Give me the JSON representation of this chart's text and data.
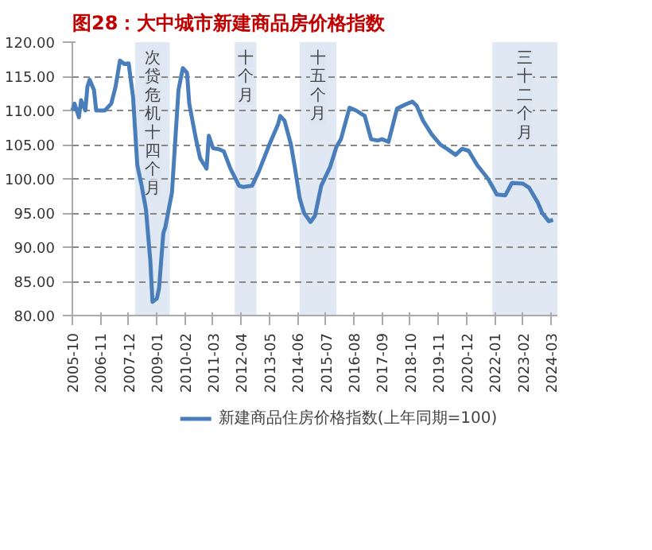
{
  "chart_data": {
    "type": "line",
    "title": "图28：大中城市新建商品房价格指数",
    "x": [
      "2005-10",
      "2005-11",
      "2006-01",
      "2006-02",
      "2006-04",
      "2006-05",
      "2006-06",
      "2006-08",
      "2006-09",
      "2007-01",
      "2007-04",
      "2007-06",
      "2007-08",
      "2007-10",
      "2007-12",
      "2008-02",
      "2008-04",
      "2008-06",
      "2008-08",
      "2008-10",
      "2008-11",
      "2009-01",
      "2009-02",
      "2009-04",
      "2009-05",
      "2009-08",
      "2009-11",
      "2010-01",
      "2010-03",
      "2010-04",
      "2010-07",
      "2010-09",
      "2010-12",
      "2011-01",
      "2011-03",
      "2011-06",
      "2011-08",
      "2011-11",
      "2012-03",
      "2012-05",
      "2012-09",
      "2012-12",
      "2013-05",
      "2013-09",
      "2013-10",
      "2013-12",
      "2014-03",
      "2014-05",
      "2014-07",
      "2014-09",
      "2014-12",
      "2015-02",
      "2015-05",
      "2015-09",
      "2015-12",
      "2016-02",
      "2016-06",
      "2016-09",
      "2017-01",
      "2017-04",
      "2017-07",
      "2017-09",
      "2017-12",
      "2018-04",
      "2018-08",
      "2018-11",
      "2019-01",
      "2019-04",
      "2019-08",
      "2019-12",
      "2020-03",
      "2020-07",
      "2020-10",
      "2021-01",
      "2021-05",
      "2021-10",
      "2022-02",
      "2022-06",
      "2022-09",
      "2023-02",
      "2023-05",
      "2023-09",
      "2023-11",
      "2024-02",
      "2024-04"
    ],
    "series": [
      {
        "name": "新建商品住房价格指数(上年同期=100)",
        "color": "#4a7ebb",
        "values": [
          110,
          111,
          109,
          111.5,
          110,
          113.5,
          114.5,
          113,
          110,
          110,
          111,
          113.5,
          117.3,
          116.8,
          116.9,
          112,
          102,
          99,
          95.5,
          88,
          82,
          82.5,
          84,
          92,
          93,
          98,
          113,
          116.2,
          115.5,
          111,
          106,
          103,
          101.5,
          106.3,
          104.5,
          104.3,
          104,
          101.5,
          99,
          98.8,
          99,
          101,
          105,
          108,
          109.2,
          108.5,
          105,
          101.3,
          97.2,
          95,
          93.7,
          94.6,
          99,
          101.7,
          104.7,
          105.8,
          110.4,
          110,
          109.2,
          105.8,
          105.6,
          105.8,
          105.4,
          110.3,
          110.9,
          111.3,
          110.7,
          108.5,
          106.5,
          105,
          104.4,
          103.5,
          104.4,
          104.1,
          102,
          100,
          97.7,
          97.6,
          99.4,
          99.3,
          98.7,
          96.5,
          95,
          93.8,
          94
        ]
      }
    ],
    "xlim": [
      "2005-10",
      "2024-06"
    ],
    "xticks": [
      "2005-10",
      "2006-11",
      "2007-12",
      "2009-01",
      "2010-02",
      "2011-03",
      "2012-04",
      "2013-05",
      "2014-06",
      "2015-07",
      "2016-08",
      "2017-09",
      "2018-10",
      "2019-11",
      "2020-12",
      "2022-01",
      "2023-02",
      "2024-03"
    ],
    "ylim": [
      80,
      120
    ],
    "yticks": [
      {
        "value": 80,
        "label": "80.00"
      },
      {
        "value": 85,
        "label": "85.00"
      },
      {
        "value": 90,
        "label": "90.00"
      },
      {
        "value": 95,
        "label": "95.00"
      },
      {
        "value": 100,
        "label": "100.00"
      },
      {
        "value": 105,
        "label": "105.00"
      },
      {
        "value": 110,
        "label": "110.00"
      },
      {
        "value": 115,
        "label": "115.00"
      },
      {
        "value": 120,
        "label": "120.00"
      }
    ],
    "bands": [
      {
        "axis": "x",
        "from": "2008-03",
        "to": "2009-07",
        "label": "次贷危机十四个月",
        "color": "#dce6f2"
      },
      {
        "axis": "x",
        "from": "2012-01",
        "to": "2012-11",
        "label": "十个月",
        "color": "#dce6f2"
      },
      {
        "axis": "x",
        "from": "2014-07",
        "to": "2015-12",
        "label": "十五个月",
        "color": "#dce6f2"
      },
      {
        "axis": "x",
        "from": "2021-12",
        "to": "2024-06",
        "label": "三十二个月",
        "color": "#dce6f2"
      }
    ],
    "grid": "y",
    "legend": "bottom",
    "line_style": "solid",
    "marker": "none"
  }
}
